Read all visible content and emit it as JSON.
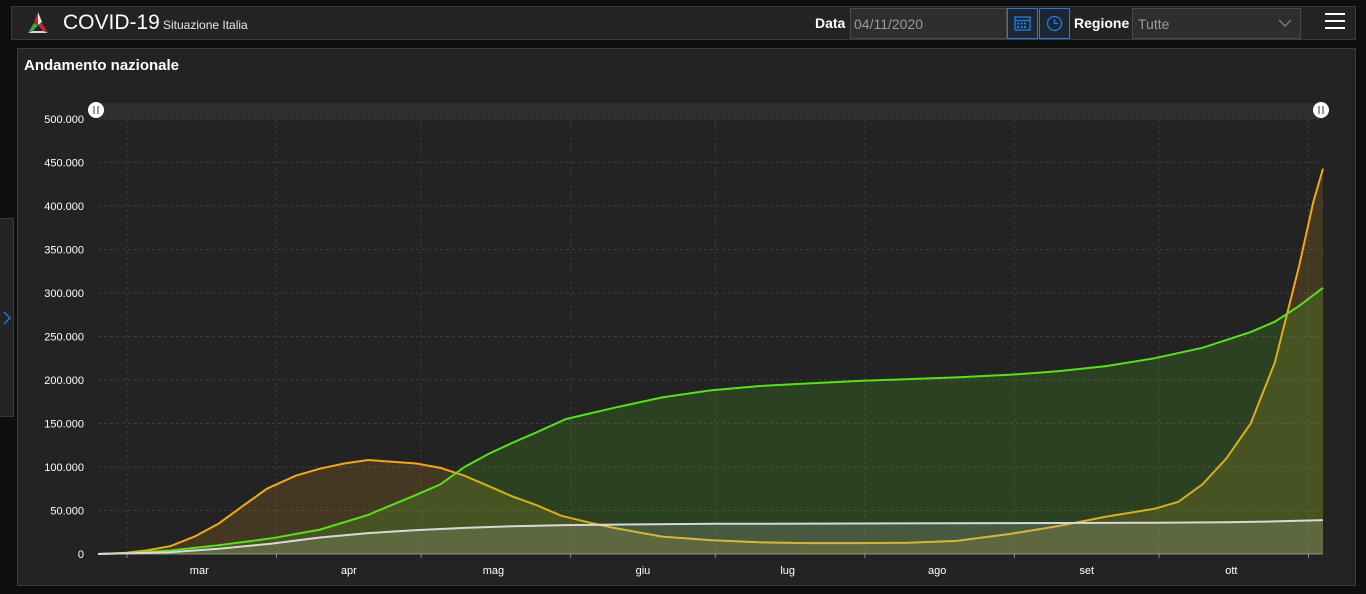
{
  "header": {
    "title": "COVID-19",
    "subtitle": "Situazione Italia",
    "date_label": "Data",
    "date_value": "04/11/2020",
    "region_label": "Regione",
    "region_value": "Tutte"
  },
  "icons": {
    "logo": "covid-logo-icon",
    "calendar": "calendar-icon",
    "clock": "clock-icon",
    "menu": "hamburger-menu-icon",
    "expand": "chevron-right-icon",
    "dropdown": "chevron-down-icon"
  },
  "colors": {
    "background": "#232323",
    "accent": "#1f7ee0",
    "series_orange": "#f0a81c",
    "series_green": "#58e01c",
    "series_white": "#d8d8d8"
  },
  "panel": {
    "title": "Andamento nazionale"
  },
  "chart_data": {
    "type": "area",
    "title": "",
    "xlabel": "",
    "ylabel": "",
    "ylim": [
      0,
      500000
    ],
    "yticks": [
      0,
      50000,
      100000,
      150000,
      200000,
      250000,
      300000,
      350000,
      400000,
      450000,
      500000
    ],
    "ytick_labels": [
      "0",
      "50.000",
      "100.000",
      "150.000",
      "200.000",
      "250.000",
      "300.000",
      "350.000",
      "400.000",
      "450.000",
      "500.000"
    ],
    "xlim": [
      "2020-02-24",
      "2020-11-04"
    ],
    "x_month_ticks": [
      {
        "label": "mar",
        "date": "2020-03-16"
      },
      {
        "label": "apr",
        "date": "2020-04-16"
      },
      {
        "label": "mag",
        "date": "2020-05-16"
      },
      {
        "label": "giu",
        "date": "2020-06-16"
      },
      {
        "label": "lug",
        "date": "2020-07-16"
      },
      {
        "label": "ago",
        "date": "2020-08-16"
      },
      {
        "label": "set",
        "date": "2020-09-16"
      },
      {
        "label": "ott",
        "date": "2020-10-16"
      }
    ],
    "x_grid_dates": [
      "2020-03-01",
      "2020-04-01",
      "2020-05-01",
      "2020-06-01",
      "2020-07-01",
      "2020-08-01",
      "2020-09-01",
      "2020-10-01",
      "2020-11-01"
    ],
    "grid": true,
    "legend": "none",
    "series": [
      {
        "color": "#f0a81c",
        "points": [
          [
            "2020-02-24",
            0
          ],
          [
            "2020-03-01",
            1500
          ],
          [
            "2020-03-05",
            4000
          ],
          [
            "2020-03-10",
            9000
          ],
          [
            "2020-03-15",
            20000
          ],
          [
            "2020-03-20",
            35000
          ],
          [
            "2020-03-25",
            55000
          ],
          [
            "2020-03-30",
            75000
          ],
          [
            "2020-04-05",
            90000
          ],
          [
            "2020-04-10",
            98000
          ],
          [
            "2020-04-15",
            104000
          ],
          [
            "2020-04-20",
            108000
          ],
          [
            "2020-04-25",
            106000
          ],
          [
            "2020-04-30",
            104000
          ],
          [
            "2020-05-05",
            99000
          ],
          [
            "2020-05-10",
            90000
          ],
          [
            "2020-05-15",
            78000
          ],
          [
            "2020-05-20",
            66000
          ],
          [
            "2020-05-25",
            56000
          ],
          [
            "2020-05-30",
            44000
          ],
          [
            "2020-06-05",
            36000
          ],
          [
            "2020-06-10",
            30000
          ],
          [
            "2020-06-15",
            25000
          ],
          [
            "2020-06-20",
            20000
          ],
          [
            "2020-06-30",
            16000
          ],
          [
            "2020-07-10",
            13500
          ],
          [
            "2020-07-20",
            12500
          ],
          [
            "2020-07-31",
            12500
          ],
          [
            "2020-08-10",
            13000
          ],
          [
            "2020-08-20",
            15000
          ],
          [
            "2020-08-31",
            23000
          ],
          [
            "2020-09-10",
            32000
          ],
          [
            "2020-09-20",
            43000
          ],
          [
            "2020-09-30",
            52000
          ],
          [
            "2020-10-05",
            60000
          ],
          [
            "2020-10-10",
            80000
          ],
          [
            "2020-10-15",
            110000
          ],
          [
            "2020-10-20",
            150000
          ],
          [
            "2020-10-25",
            220000
          ],
          [
            "2020-10-30",
            330000
          ],
          [
            "2020-11-02",
            405000
          ],
          [
            "2020-11-04",
            443000
          ]
        ]
      },
      {
        "color": "#58e01c",
        "points": [
          [
            "2020-02-24",
            0
          ],
          [
            "2020-03-01",
            1000
          ],
          [
            "2020-03-10",
            4000
          ],
          [
            "2020-03-20",
            10000
          ],
          [
            "2020-03-31",
            18000
          ],
          [
            "2020-04-10",
            28000
          ],
          [
            "2020-04-20",
            45000
          ],
          [
            "2020-04-30",
            68000
          ],
          [
            "2020-05-05",
            80000
          ],
          [
            "2020-05-10",
            100000
          ],
          [
            "2020-05-15",
            115000
          ],
          [
            "2020-05-20",
            128000
          ],
          [
            "2020-05-25",
            140000
          ],
          [
            "2020-05-31",
            155000
          ],
          [
            "2020-06-10",
            168000
          ],
          [
            "2020-06-20",
            180000
          ],
          [
            "2020-06-30",
            188000
          ],
          [
            "2020-07-10",
            193000
          ],
          [
            "2020-07-20",
            196000
          ],
          [
            "2020-07-31",
            199000
          ],
          [
            "2020-08-10",
            201000
          ],
          [
            "2020-08-20",
            203000
          ],
          [
            "2020-08-31",
            206000
          ],
          [
            "2020-09-10",
            210000
          ],
          [
            "2020-09-20",
            216000
          ],
          [
            "2020-09-30",
            225000
          ],
          [
            "2020-10-10",
            237000
          ],
          [
            "2020-10-20",
            255000
          ],
          [
            "2020-10-25",
            267000
          ],
          [
            "2020-10-30",
            285000
          ],
          [
            "2020-11-04",
            306000
          ]
        ]
      },
      {
        "color": "#d8d8d8",
        "points": [
          [
            "2020-02-24",
            0
          ],
          [
            "2020-03-10",
            2000
          ],
          [
            "2020-03-20",
            6000
          ],
          [
            "2020-03-31",
            12000
          ],
          [
            "2020-04-10",
            19000
          ],
          [
            "2020-04-20",
            24000
          ],
          [
            "2020-04-30",
            27500
          ],
          [
            "2020-05-10",
            30000
          ],
          [
            "2020-05-20",
            32000
          ],
          [
            "2020-05-31",
            33200
          ],
          [
            "2020-06-15",
            34000
          ],
          [
            "2020-07-01",
            34700
          ],
          [
            "2020-07-31",
            35100
          ],
          [
            "2020-08-31",
            35500
          ],
          [
            "2020-09-30",
            36000
          ],
          [
            "2020-10-15",
            36500
          ],
          [
            "2020-10-25",
            37500
          ],
          [
            "2020-11-04",
            39000
          ]
        ]
      }
    ]
  }
}
